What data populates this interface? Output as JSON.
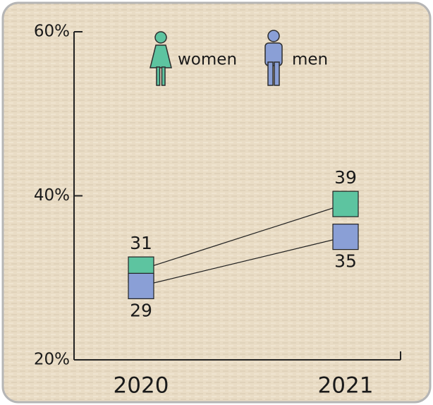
{
  "chart_data": {
    "type": "line",
    "categories": [
      "2020",
      "2021"
    ],
    "series": [
      {
        "name": "women",
        "color": "#5dc4a0",
        "values": [
          31,
          39
        ]
      },
      {
        "name": "men",
        "color": "#8a9fd6",
        "values": [
          29,
          35
        ]
      }
    ],
    "ylim": [
      20,
      60
    ],
    "yticks": [
      {
        "value": 20,
        "label": "20%"
      },
      {
        "value": 40,
        "label": "40%"
      },
      {
        "value": 60,
        "label": "60%"
      }
    ]
  }
}
